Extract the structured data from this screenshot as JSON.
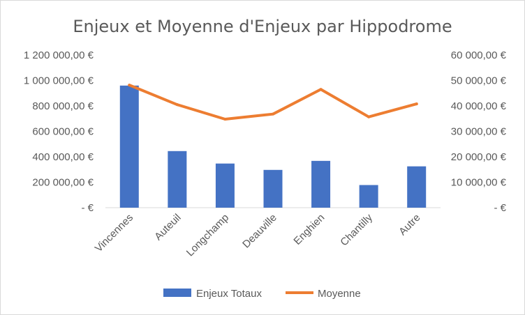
{
  "chart_data": {
    "type": "bar+line",
    "title": "Enjeux et Moyenne d'Enjeux par Hippodrome",
    "categories": [
      "Vincennes",
      "Auteuil",
      "Longchamp",
      "Deauville",
      "Enghien",
      "Chantilly",
      "Autre"
    ],
    "series": [
      {
        "name": "Enjeux Totaux",
        "type": "bar",
        "axis": "left",
        "color": "#4472c4",
        "values": [
          960000,
          445000,
          347000,
          297000,
          368000,
          178000,
          325000
        ]
      },
      {
        "name": "Moyenne",
        "type": "line",
        "axis": "right",
        "color": "#ed7d31",
        "values": [
          48200,
          40500,
          34800,
          36800,
          46500,
          35700,
          40800
        ]
      }
    ],
    "y_left": {
      "ylim": [
        0,
        1200000
      ],
      "tick_labels": [
        "-  €",
        "200 000,00 €",
        "400 000,00 €",
        "600 000,00 €",
        "800 000,00 €",
        "1 000 000,00 €",
        "1 200 000,00 €"
      ]
    },
    "y_right": {
      "ylim": [
        0,
        60000
      ],
      "tick_labels": [
        "-  €",
        "10 000,00 €",
        "20 000,00 €",
        "30 000,00 €",
        "40 000,00 €",
        "50 000,00 €",
        "60 000,00 €"
      ]
    },
    "grid": false,
    "legend": "bottom"
  }
}
